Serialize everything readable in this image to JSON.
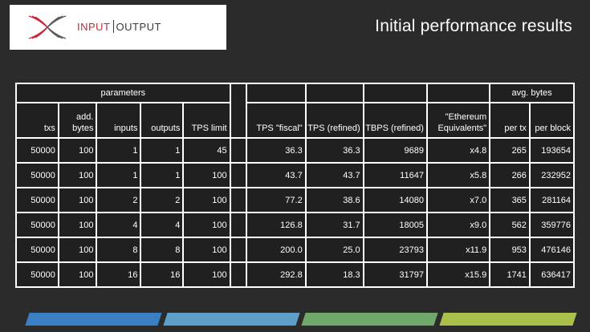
{
  "logo": {
    "word1": "INPUT",
    "word2": "OUTPUT",
    "accent_color": "#c8283c"
  },
  "title": "Initial performance results",
  "table": {
    "group_params": "parameters",
    "group_bytes": "avg. bytes",
    "headers": {
      "txs": "txs",
      "add_bytes": "add. bytes",
      "inputs": "inputs",
      "outputs": "outputs",
      "tps_limit": "TPS limit",
      "tps_fiscal": "TPS \"fiscal\"",
      "tps_refined": "TPS (refined)",
      "tbps_refined": "TBPS (refined)",
      "eth_equiv": "\"Ethereum Equivalents\"",
      "per_tx": "per tx",
      "per_block": "per block"
    },
    "rows": [
      [
        "50000",
        "100",
        "1",
        "1",
        "45",
        "36.3",
        "36.3",
        "9689",
        "x4.8",
        "265",
        "193654"
      ],
      [
        "50000",
        "100",
        "1",
        "1",
        "100",
        "43.7",
        "43.7",
        "11647",
        "x5.8",
        "266",
        "232952"
      ],
      [
        "50000",
        "100",
        "2",
        "2",
        "100",
        "77.2",
        "38.6",
        "14080",
        "x7.0",
        "365",
        "281164"
      ],
      [
        "50000",
        "100",
        "4",
        "4",
        "100",
        "126.8",
        "31.7",
        "18005",
        "x9.0",
        "562",
        "359776"
      ],
      [
        "50000",
        "100",
        "8",
        "8",
        "100",
        "200.0",
        "25.0",
        "23793",
        "x11.9",
        "953",
        "476146"
      ],
      [
        "50000",
        "100",
        "16",
        "16",
        "100",
        "292.8",
        "18.3",
        "31797",
        "x15.9",
        "1741",
        "636417"
      ]
    ]
  },
  "footer_bar_colors": [
    "#3a7fc4",
    "#5d9fc9",
    "#6fa86a",
    "#a9c14a"
  ]
}
